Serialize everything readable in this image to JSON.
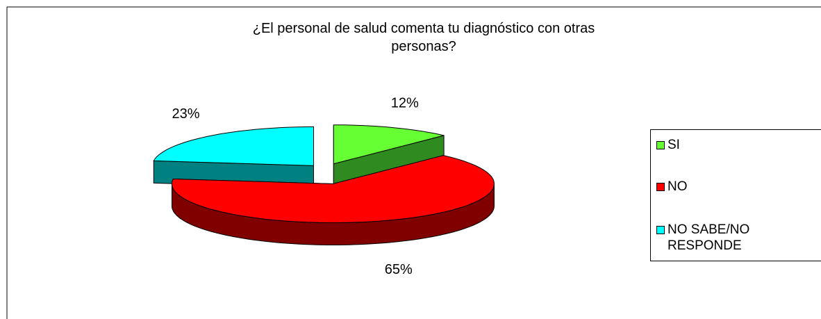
{
  "chart_data": {
    "type": "pie3d",
    "title": "¿El personal de salud comenta tu diagnóstico con otras\npersonas?",
    "categories": [
      "SI",
      "NO",
      "NO SABE/NO\nRESPONDE"
    ],
    "values": [
      12,
      65,
      23
    ],
    "value_labels": [
      "12%",
      "65%",
      "23%"
    ],
    "colors": [
      "#66ff33",
      "#ff0000",
      "#00ffff"
    ],
    "side_colors": [
      "#2f8a1f",
      "#800000",
      "#008080"
    ],
    "legend": "right"
  }
}
